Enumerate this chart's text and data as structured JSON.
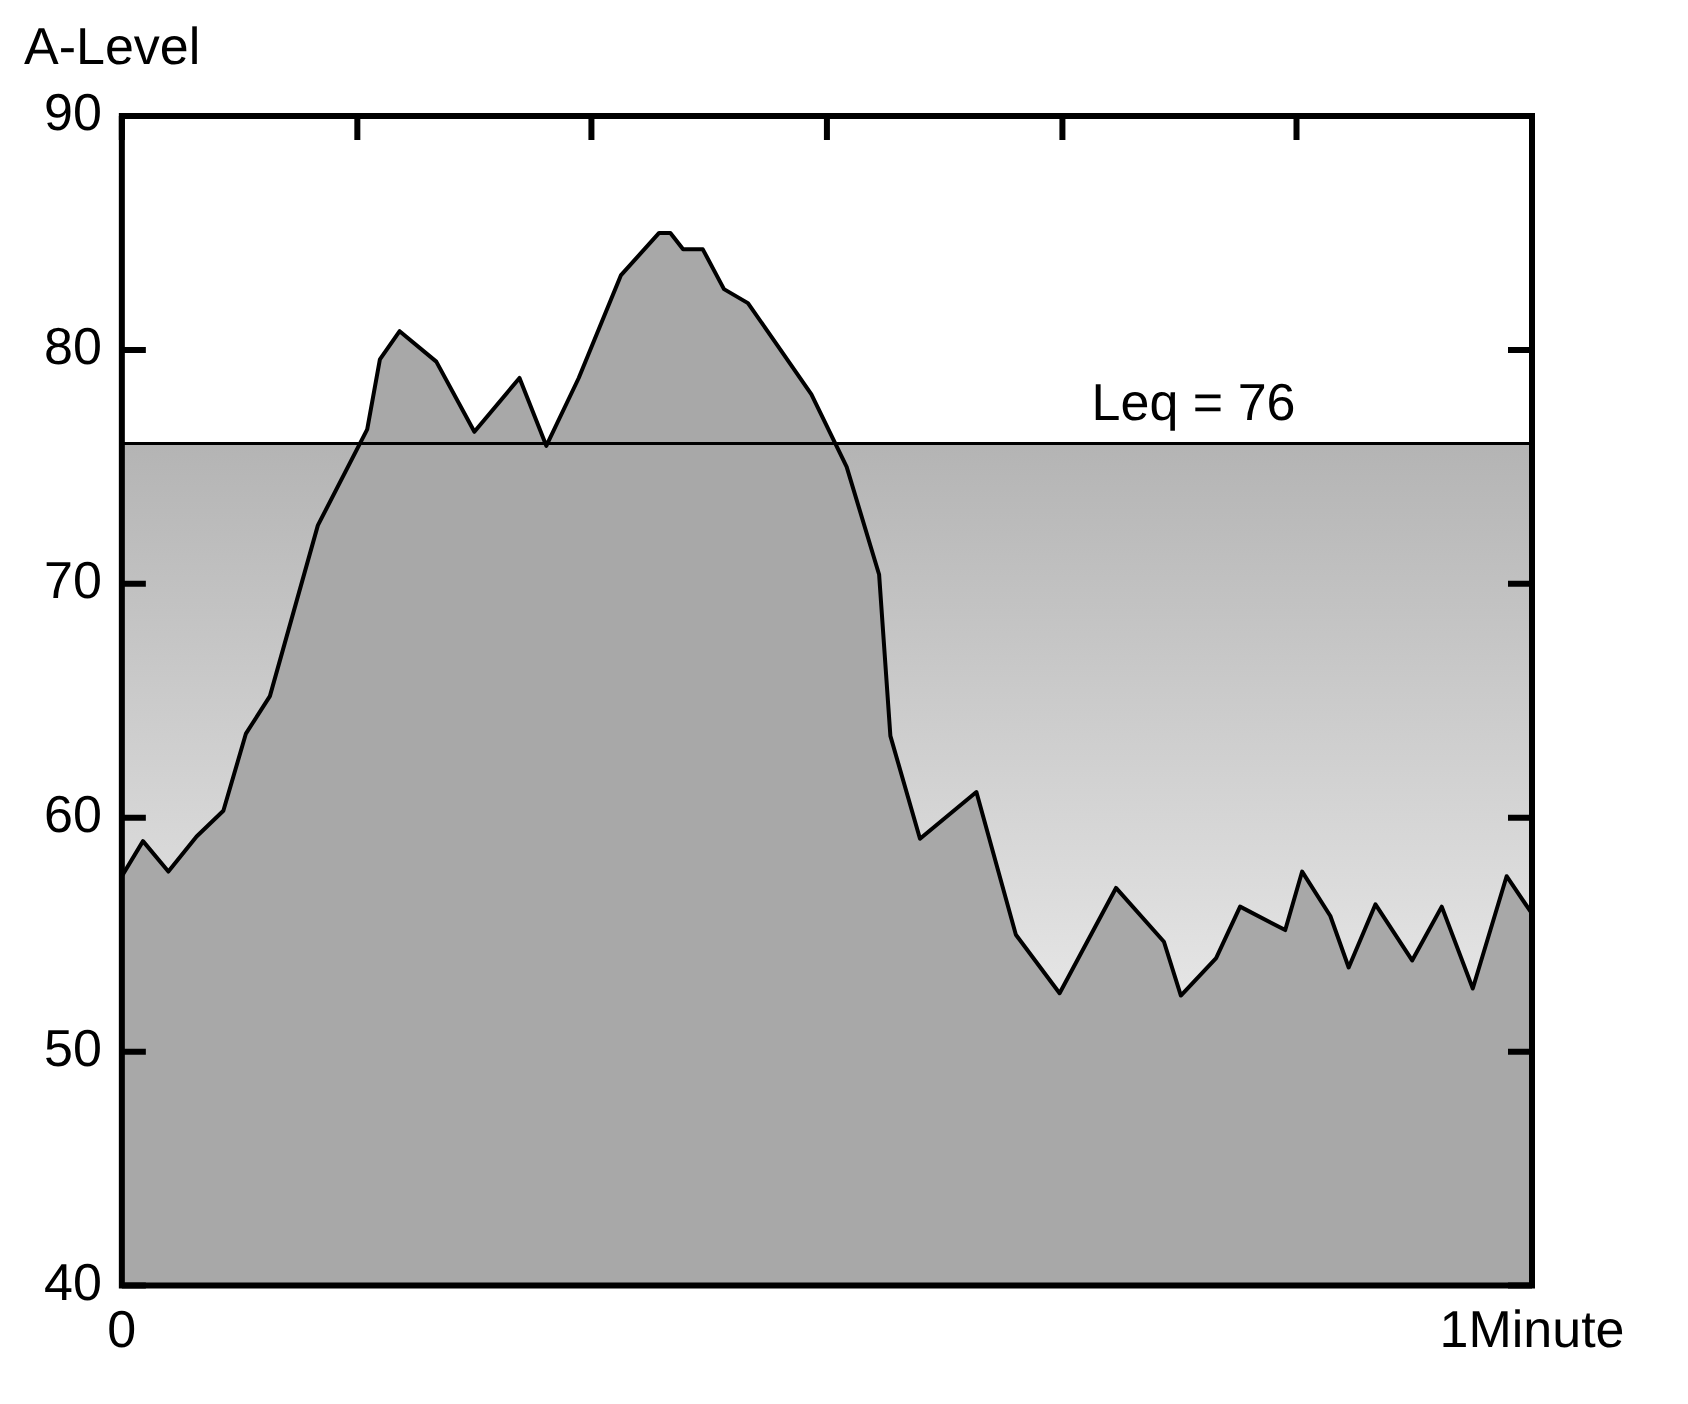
{
  "chart_data": {
    "type": "area",
    "ylabel": "A-Level",
    "x": [
      0,
      0.015,
      0.033,
      0.053,
      0.072,
      0.088,
      0.105,
      0.139,
      0.174,
      0.183,
      0.197,
      0.223,
      0.25,
      0.282,
      0.301,
      0.324,
      0.354,
      0.381,
      0.389,
      0.398,
      0.412,
      0.427,
      0.444,
      0.466,
      0.489,
      0.514,
      0.537,
      0.545,
      0.566,
      0.606,
      0.634,
      0.665,
      0.705,
      0.739,
      0.751,
      0.776,
      0.793,
      0.825,
      0.837,
      0.857,
      0.87,
      0.889,
      0.915,
      0.936,
      0.958,
      0.982,
      1
    ],
    "values": [
      57.5,
      59.0,
      57.7,
      59.2,
      60.3,
      63.6,
      65.2,
      72.5,
      76.6,
      79.6,
      80.8,
      79.5,
      76.5,
      78.8,
      75.9,
      78.8,
      83.2,
      85.0,
      85.0,
      84.3,
      84.3,
      82.6,
      82.0,
      80.1,
      78.1,
      75.0,
      70.4,
      63.5,
      59.1,
      61.1,
      55.0,
      52.5,
      57.0,
      54.7,
      52.4,
      54.0,
      56.2,
      55.2,
      57.7,
      55.8,
      53.6,
      56.3,
      53.9,
      56.2,
      52.7,
      57.5,
      55.9
    ],
    "color": "#a8a8a8",
    "xlim": [
      0,
      1
    ],
    "xticks": [
      0,
      {
        "value": 0.167,
        "label": null
      },
      {
        "value": 0.333,
        "label": null
      },
      {
        "value": 0.5,
        "label": null
      },
      {
        "value": 0.667,
        "label": null
      },
      {
        "value": 0.833,
        "label": null
      },
      {
        "value": 1,
        "label": "1Minute"
      }
    ],
    "ylim": [
      40,
      90
    ],
    "yticks": [
      40,
      50,
      60,
      70,
      80,
      90
    ],
    "ref_lines": [
      {
        "axis": "y",
        "value": 76,
        "label": "Leq = 76",
        "color": "#000000"
      }
    ],
    "bands": [
      {
        "axis": "y",
        "from": 40,
        "to": 76,
        "color": "#b4b4b4"
      }
    ]
  }
}
